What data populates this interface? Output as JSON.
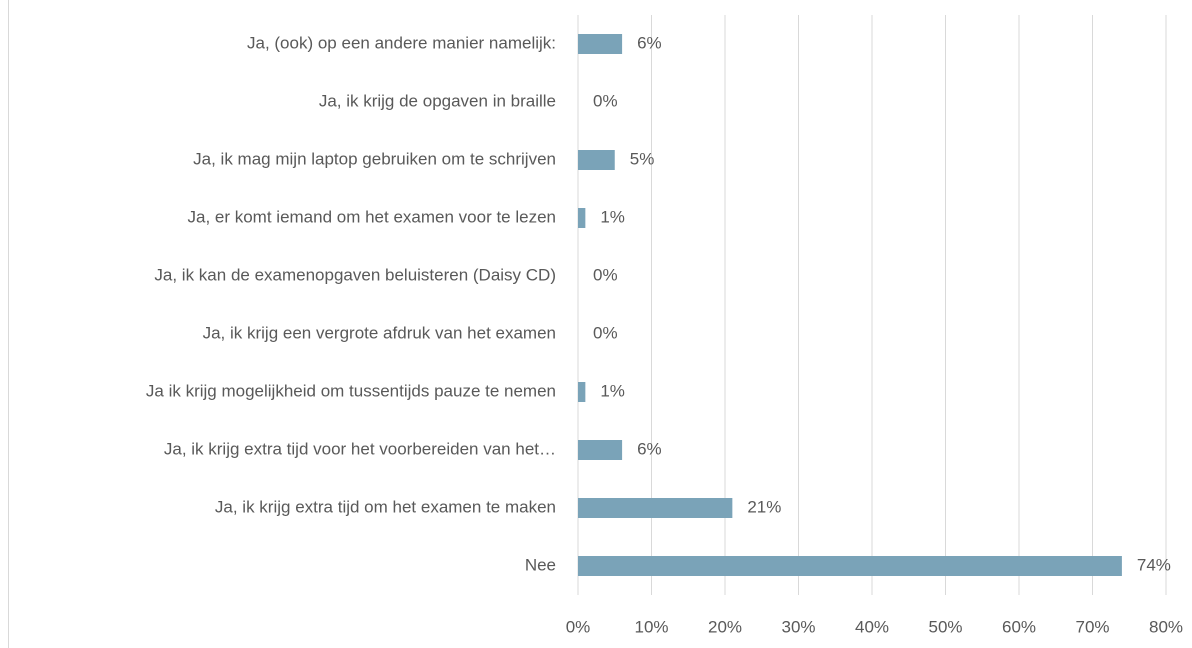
{
  "chart_data": {
    "type": "bar",
    "orientation": "horizontal",
    "categories": [
      "Ja, (ook) op een andere manier namelijk:",
      "Ja, ik krijg de opgaven in braille",
      "Ja, ik mag mijn laptop gebruiken om te schrijven",
      "Ja, er komt iemand om het examen voor te lezen",
      "Ja, ik kan de examenopgaven beluisteren (Daisy CD)",
      "Ja, ik krijg een vergrote afdruk van het examen",
      "Ja ik krijg mogelijkheid om tussentijds pauze te nemen",
      "Ja, ik krijg extra tijd voor het voorbereiden van het…",
      "Ja, ik krijg extra tijd om het examen te maken",
      "Nee"
    ],
    "values": [
      6,
      0,
      5,
      1,
      0,
      0,
      1,
      6,
      21,
      74
    ],
    "value_labels": [
      "6%",
      "0%",
      "5%",
      "1%",
      "0%",
      "0%",
      "1%",
      "6%",
      "21%",
      "74%"
    ],
    "color": "#7aa3b8",
    "xlim": [
      0,
      80
    ],
    "xticks": [
      {
        "value": 0,
        "label": "0%"
      },
      {
        "value": 10,
        "label": "10%"
      },
      {
        "value": 20,
        "label": "20%"
      },
      {
        "value": 30,
        "label": "30%"
      },
      {
        "value": 40,
        "label": "40%"
      },
      {
        "value": 50,
        "label": "50%"
      },
      {
        "value": 60,
        "label": "60%"
      },
      {
        "value": 70,
        "label": "70%"
      },
      {
        "value": 80,
        "label": "80%"
      }
    ],
    "grid": true
  }
}
